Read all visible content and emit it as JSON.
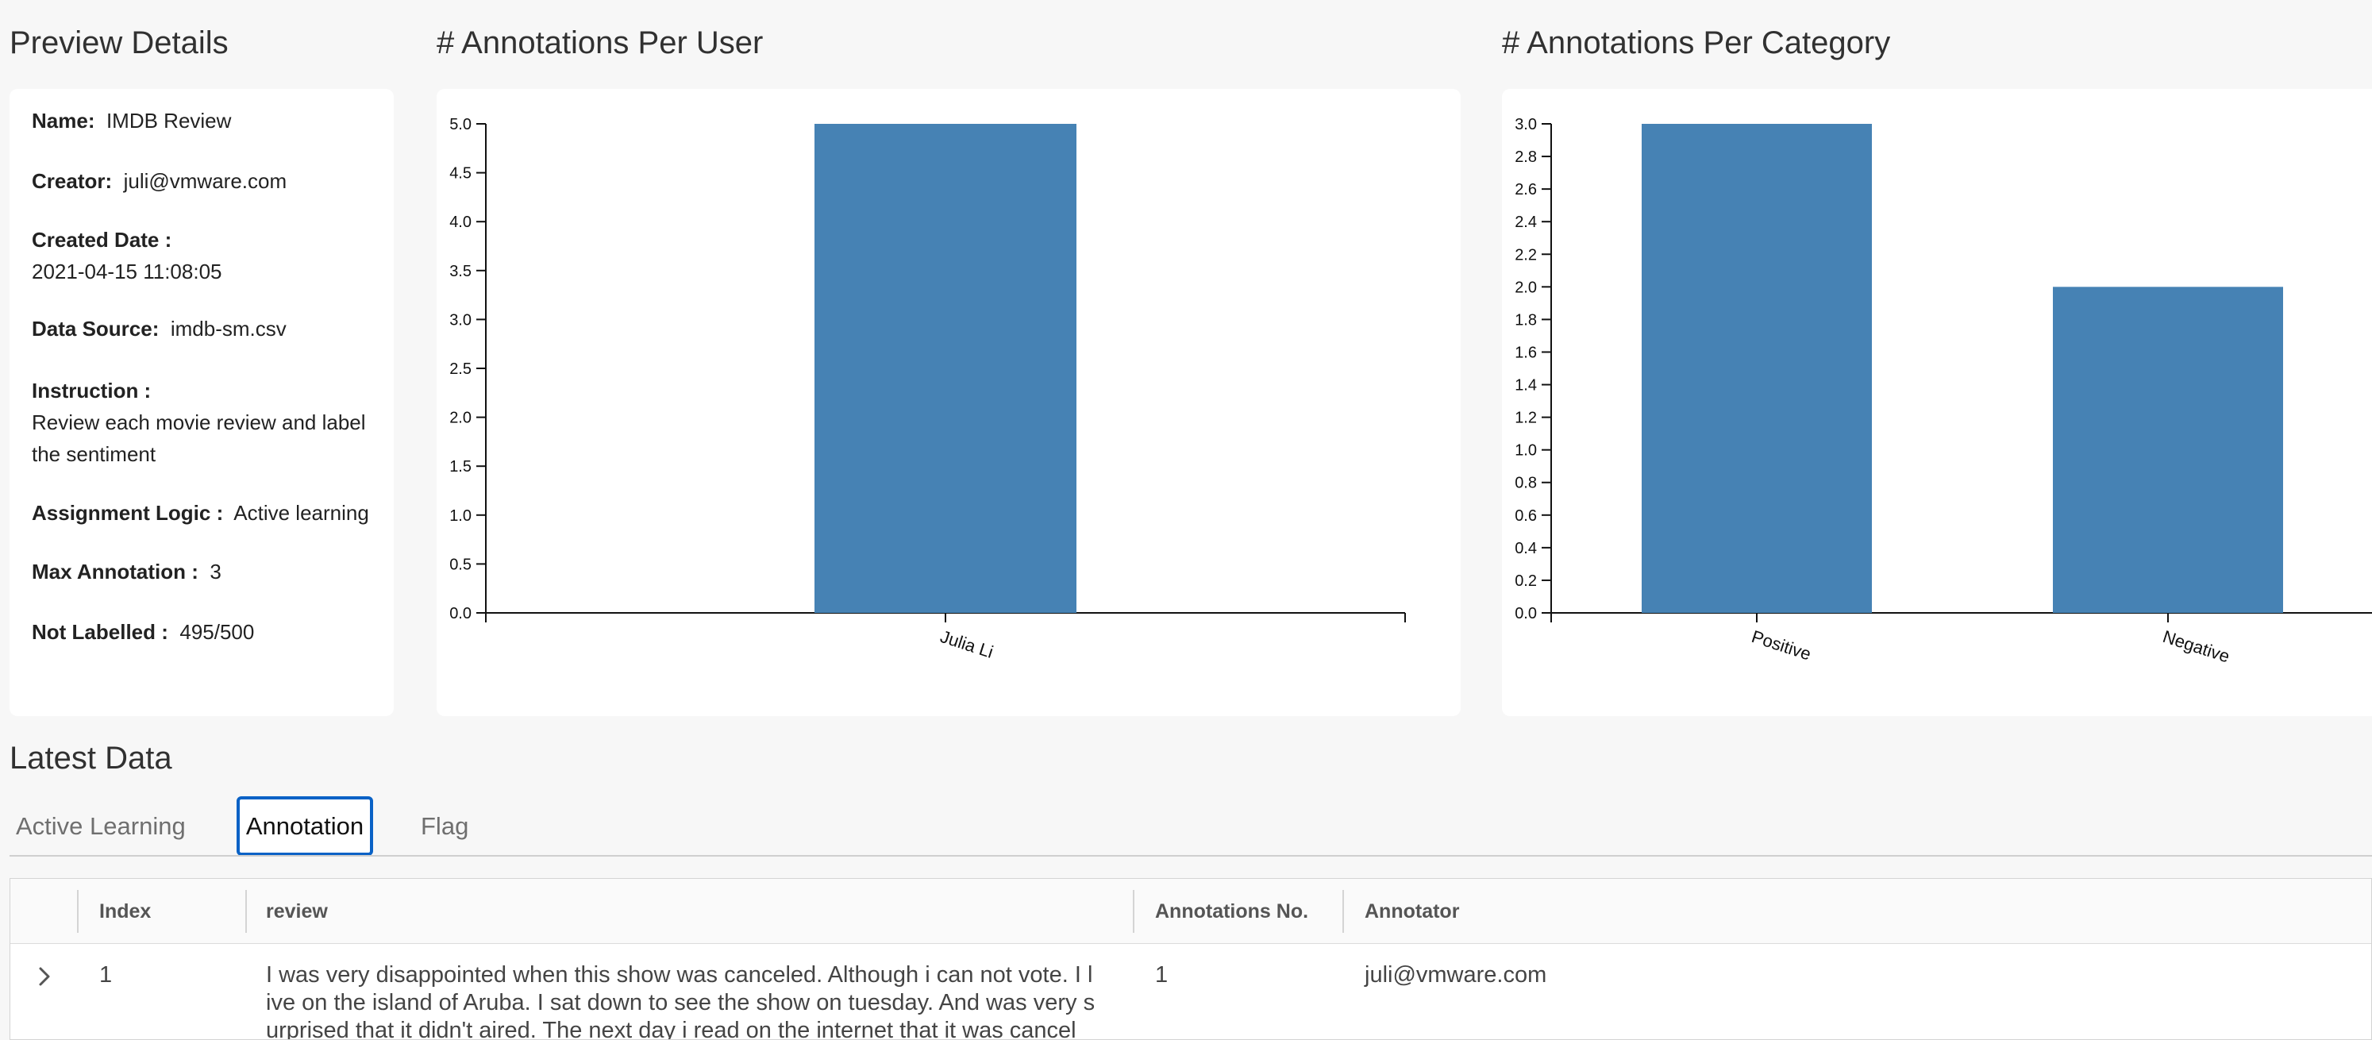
{
  "preview": {
    "title": "Preview Details",
    "name_label": "Name:",
    "name_value": "IMDB Review",
    "creator_label": "Creator:",
    "creator_value": "juli@vmware.com",
    "created_label": "Created Date :",
    "created_value": "2021-04-15 11:08:05",
    "source_label": "Data Source:",
    "source_value": "imdb-sm.csv",
    "instruction_label": "Instruction :",
    "instruction_line1": "Review each movie review and label",
    "instruction_line2": "the sentiment",
    "assignment_label": "Assignment Logic :",
    "assignment_value": "Active learning",
    "max_label": "Max Annotation :",
    "max_value": "3",
    "notlabelled_label": "Not Labelled :",
    "notlabelled_value": "495/500"
  },
  "user_chart_title": "# Annotations Per User",
  "category_chart_title": "# Annotations Per Category",
  "chart_data": [
    {
      "type": "bar",
      "title": "# Annotations Per User",
      "categories": [
        "Julia Li"
      ],
      "values": [
        5
      ],
      "ylim": [
        0,
        5
      ],
      "yticks": [
        "0.0",
        "0.5",
        "1.0",
        "1.5",
        "2.0",
        "2.5",
        "3.0",
        "3.5",
        "4.0",
        "4.5",
        "5.0"
      ],
      "grid": false,
      "color": "#4682b4"
    },
    {
      "type": "bar",
      "title": "# Annotations Per Category",
      "categories": [
        "Positive",
        "Negative"
      ],
      "values": [
        3,
        2
      ],
      "ylim": [
        0,
        3
      ],
      "yticks": [
        "0.0",
        "0.2",
        "0.4",
        "0.6",
        "0.8",
        "1.0",
        "1.2",
        "1.4",
        "1.6",
        "1.8",
        "2.0",
        "2.2",
        "2.4",
        "2.6",
        "2.8",
        "3.0"
      ],
      "grid": false,
      "color": "#4682b4"
    }
  ],
  "latest": {
    "title": "Latest Data",
    "tabs": [
      "Active Learning",
      "Annotation",
      "Flag"
    ],
    "active_tab": "Annotation",
    "columns": [
      "Index",
      "review",
      "Annotations No.",
      "Annotator"
    ],
    "rows": [
      {
        "index": "1",
        "review_lines": [
          "I was very disappointed when this show was canceled. Although i can not vote. I l",
          "ive on the island of Aruba. I sat down to see the show on tuesday. And was very s",
          "urprised that it didn't aired. The next day i read on the internet that it was cancel"
        ],
        "annotations_no": "1",
        "annotator": "juli@vmware.com"
      }
    ]
  },
  "icons": {
    "expander": "chevron-right-icon"
  }
}
